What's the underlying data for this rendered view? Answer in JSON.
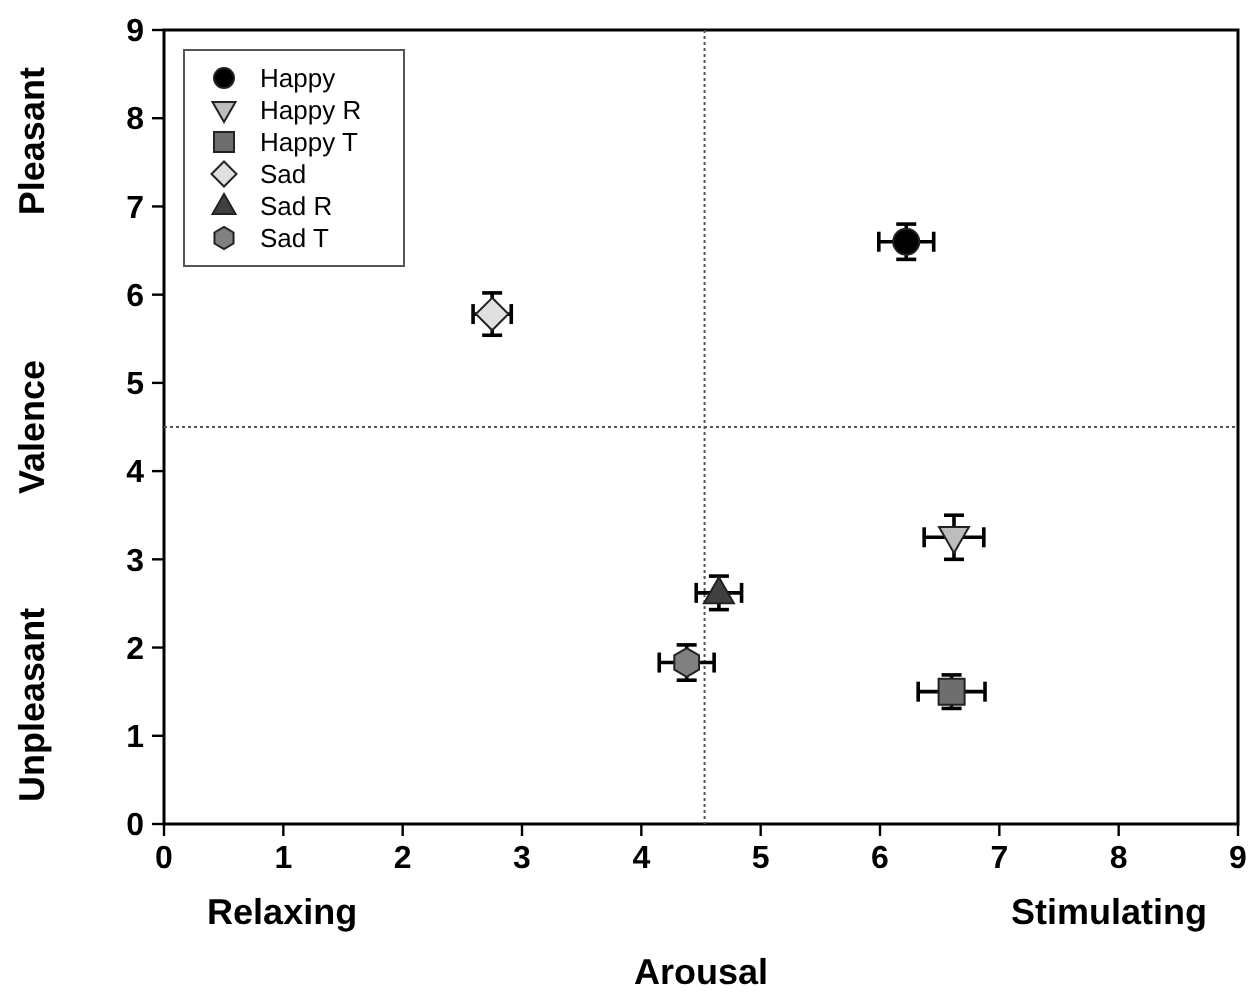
{
  "chart_data": {
    "type": "scatter",
    "xlabel": "Arousal",
    "ylabel": "Valence",
    "xlim": [
      0,
      9
    ],
    "ylim": [
      0,
      9
    ],
    "xticks": [
      0,
      1,
      2,
      3,
      4,
      5,
      6,
      7,
      8,
      9
    ],
    "yticks": [
      0,
      1,
      2,
      3,
      4,
      5,
      6,
      7,
      8,
      9
    ],
    "grid": false,
    "legend": "top left",
    "annotations": [
      "Pleasant",
      "Unpleasant",
      "Relaxing",
      "Stimulating"
    ],
    "ref_lines": [
      {
        "axis": "x",
        "value": 4.53,
        "line_style": "dotted",
        "color": "#555555"
      },
      {
        "axis": "y",
        "value": 4.5,
        "line_style": "dotted",
        "color": "#555555"
      }
    ],
    "series": [
      {
        "name": "Happy",
        "color": "#000000",
        "marker": "circle",
        "x": [
          6.22
        ],
        "values": [
          6.6
        ],
        "errors": [
          0.2
        ],
        "xerrors": [
          0.23
        ]
      },
      {
        "name": "Happy R",
        "color": "#bdbdbd",
        "marker": "triangle-down",
        "x": [
          6.62
        ],
        "values": [
          3.25
        ],
        "errors": [
          0.25
        ],
        "xerrors": [
          0.25
        ]
      },
      {
        "name": "Happy T",
        "color": "#6e6e6e",
        "marker": "square",
        "x": [
          6.6
        ],
        "values": [
          1.5
        ],
        "errors": [
          0.19
        ],
        "xerrors": [
          0.28
        ]
      },
      {
        "name": "Sad",
        "color": "#e0e0e0",
        "marker": "diamond",
        "x": [
          2.75
        ],
        "values": [
          5.78
        ],
        "errors": [
          0.24
        ],
        "xerrors": [
          0.16
        ]
      },
      {
        "name": "Sad R",
        "color": "#404040",
        "marker": "triangle",
        "x": [
          4.65
        ],
        "values": [
          2.62
        ],
        "errors": [
          0.19
        ],
        "xerrors": [
          0.19
        ]
      },
      {
        "name": "Sad T",
        "color": "#808080",
        "x": [
          4.38
        ],
        "values": [
          1.83
        ],
        "errors": [
          0.2
        ],
        "xerrors": [
          0.23
        ]
      }
    ]
  }
}
